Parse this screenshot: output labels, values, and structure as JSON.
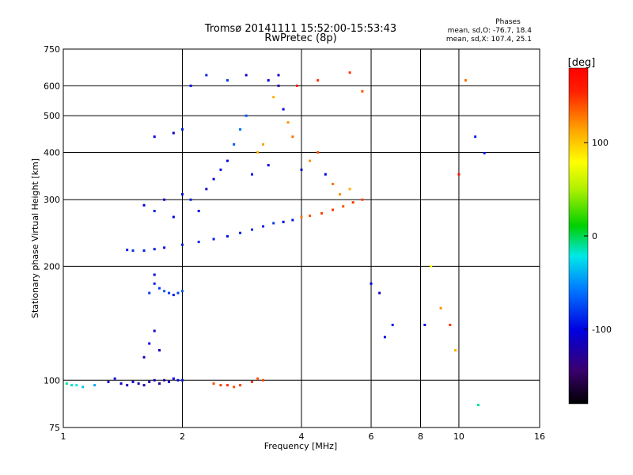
{
  "chart_data": {
    "type": "scatter",
    "title": "Tromsø 20141111 15:52:00-15:53:43",
    "subtitle": "RwPretec (8p)",
    "xlabel": "Frequency [MHz]",
    "ylabel": "Stationary phase Virtual Height [km]",
    "x_scale": "log",
    "y_scale": "log",
    "xlim": [
      1,
      16
    ],
    "ylim": [
      75,
      750
    ],
    "x_ticks": [
      1,
      2,
      4,
      6,
      8,
      10,
      16
    ],
    "y_ticks": [
      75,
      100,
      200,
      300,
      400,
      500,
      600,
      750
    ],
    "grid": true,
    "info": {
      "heading": "Phases",
      "line1": "mean, sd,O: -76.7, 18.4",
      "line2": "mean, sd,X: 107.4, 25.1"
    },
    "colorbar": {
      "label": "[deg]",
      "min": -180,
      "max": 180,
      "ticks": [
        100,
        0,
        -100
      ]
    },
    "series": [
      {
        "points": [
          [
            1.02,
            98,
            -10
          ],
          [
            1.05,
            97,
            -15
          ],
          [
            1.08,
            97,
            -20
          ],
          [
            1.12,
            96,
            -30
          ],
          [
            1.2,
            97,
            -40
          ],
          [
            1.3,
            99,
            -110
          ],
          [
            1.35,
            101,
            -100
          ],
          [
            1.4,
            98,
            -110
          ],
          [
            1.45,
            97,
            -120
          ],
          [
            1.5,
            99,
            -105
          ],
          [
            1.55,
            98,
            -120
          ],
          [
            1.6,
            97,
            -115
          ],
          [
            1.65,
            99,
            -125
          ],
          [
            1.7,
            100,
            -110
          ],
          [
            1.75,
            98,
            -130
          ],
          [
            1.8,
            100,
            -120
          ],
          [
            1.85,
            99,
            -110
          ],
          [
            1.9,
            101,
            -100
          ],
          [
            1.95,
            100,
            -105
          ],
          [
            2.0,
            100,
            -90
          ],
          [
            1.6,
            115,
            -110
          ],
          [
            1.65,
            125,
            -100
          ],
          [
            1.7,
            135,
            -110
          ],
          [
            1.75,
            120,
            -120
          ],
          [
            1.65,
            170,
            -80
          ],
          [
            1.7,
            180,
            -90
          ],
          [
            1.7,
            190,
            -100
          ],
          [
            1.75,
            175,
            -80
          ],
          [
            1.8,
            172,
            -70
          ],
          [
            1.85,
            170,
            -80
          ],
          [
            1.9,
            168,
            -90
          ],
          [
            1.95,
            170,
            -80
          ],
          [
            2.0,
            172,
            -70
          ],
          [
            1.45,
            221,
            -90
          ],
          [
            1.5,
            220,
            -85
          ],
          [
            1.6,
            220,
            -90
          ],
          [
            1.7,
            222,
            -95
          ],
          [
            1.8,
            224,
            -100
          ],
          [
            2.0,
            228,
            -90
          ],
          [
            2.2,
            232,
            -85
          ],
          [
            2.4,
            236,
            -90
          ],
          [
            2.6,
            240,
            -95
          ],
          [
            2.8,
            245,
            -90
          ],
          [
            3.0,
            250,
            -85
          ],
          [
            3.2,
            255,
            -90
          ],
          [
            3.4,
            260,
            -80
          ],
          [
            3.6,
            262,
            -100
          ],
          [
            3.8,
            265,
            -95
          ],
          [
            4.0,
            270,
            130
          ],
          [
            4.2,
            272,
            140
          ],
          [
            4.5,
            276,
            145
          ],
          [
            4.8,
            282,
            150
          ],
          [
            5.1,
            288,
            140
          ],
          [
            5.4,
            295,
            150
          ],
          [
            5.7,
            300,
            145
          ],
          [
            2.4,
            98,
            140
          ],
          [
            2.5,
            97,
            145
          ],
          [
            2.6,
            97,
            150
          ],
          [
            2.7,
            96,
            140
          ],
          [
            2.8,
            97,
            145
          ],
          [
            3.0,
            99,
            150
          ],
          [
            3.1,
            101,
            140
          ],
          [
            3.2,
            100,
            145
          ],
          [
            1.6,
            290,
            -100
          ],
          [
            1.7,
            280,
            -90
          ],
          [
            1.8,
            300,
            -110
          ],
          [
            1.9,
            270,
            -100
          ],
          [
            2.0,
            310,
            -95
          ],
          [
            2.1,
            300,
            -90
          ],
          [
            2.2,
            280,
            -100
          ],
          [
            2.3,
            320,
            -110
          ],
          [
            2.4,
            340,
            -100
          ],
          [
            2.5,
            360,
            -95
          ],
          [
            2.6,
            380,
            -100
          ],
          [
            2.7,
            420,
            -70
          ],
          [
            2.8,
            460,
            -60
          ],
          [
            2.9,
            500,
            -70
          ],
          [
            3.0,
            350,
            -90
          ],
          [
            3.1,
            400,
            110
          ],
          [
            3.2,
            420,
            115
          ],
          [
            3.3,
            370,
            -100
          ],
          [
            3.4,
            560,
            110
          ],
          [
            3.5,
            600,
            -120
          ],
          [
            3.6,
            520,
            -100
          ],
          [
            3.7,
            480,
            120
          ],
          [
            3.8,
            440,
            130
          ],
          [
            4.0,
            360,
            -110
          ],
          [
            4.2,
            380,
            120
          ],
          [
            4.4,
            400,
            140
          ],
          [
            4.6,
            350,
            -100
          ],
          [
            4.8,
            330,
            130
          ],
          [
            5.0,
            310,
            120
          ],
          [
            5.3,
            320,
            110
          ],
          [
            1.7,
            440,
            -100
          ],
          [
            1.9,
            450,
            -110
          ],
          [
            2.0,
            460,
            -90
          ],
          [
            2.1,
            600,
            -100
          ],
          [
            2.3,
            640,
            -90
          ],
          [
            2.6,
            620,
            -80
          ],
          [
            2.9,
            640,
            -110
          ],
          [
            3.3,
            620,
            -100
          ],
          [
            3.5,
            640,
            -110
          ],
          [
            3.9,
            600,
            160
          ],
          [
            4.4,
            620,
            150
          ],
          [
            5.3,
            650,
            150
          ],
          [
            5.7,
            580,
            140
          ],
          [
            6.0,
            180,
            -100
          ],
          [
            6.3,
            170,
            -110
          ],
          [
            6.5,
            130,
            -100
          ],
          [
            6.8,
            140,
            -90
          ],
          [
            8.2,
            140,
            -100
          ],
          [
            8.5,
            200,
            80
          ],
          [
            9.0,
            155,
            120
          ],
          [
            9.5,
            140,
            150
          ],
          [
            9.8,
            120,
            110
          ],
          [
            10.4,
            620,
            130
          ],
          [
            11.0,
            440,
            -90
          ],
          [
            11.6,
            398,
            -90
          ],
          [
            11.2,
            86,
            -10
          ],
          [
            10.0,
            350,
            170
          ]
        ]
      }
    ]
  }
}
